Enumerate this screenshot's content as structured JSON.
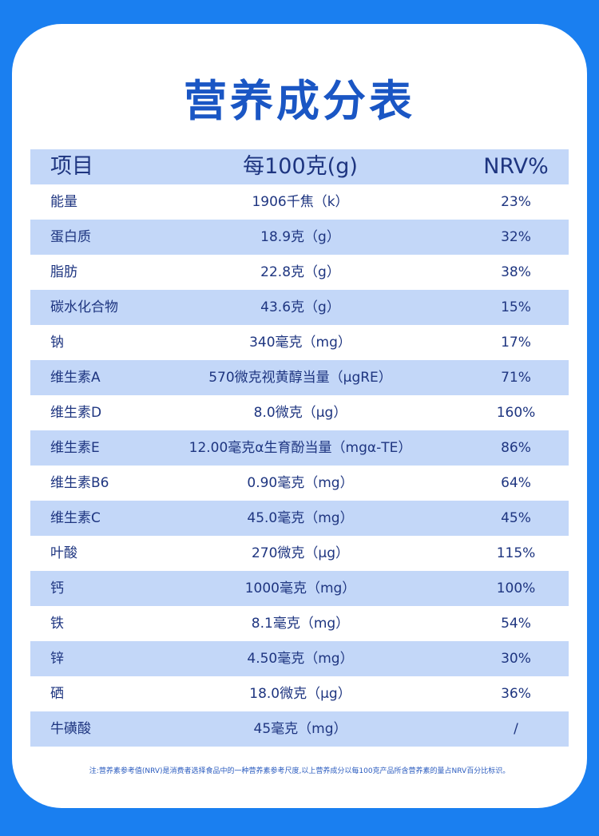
{
  "header": {
    "title": "营养成分表"
  },
  "table": {
    "columns": [
      "项目",
      "每100克(g)",
      "NRV%"
    ],
    "rows": [
      [
        "能量",
        "1906千焦（k）",
        "23%"
      ],
      [
        "蛋白质",
        "18.9克（g）",
        "32%"
      ],
      [
        "脂肪",
        "22.8克（g）",
        "38%"
      ],
      [
        "碳水化合物",
        "43.6克（g）",
        "15%"
      ],
      [
        "钠",
        "340毫克（mg）",
        "17%"
      ],
      [
        "维生素A",
        "570微克视黄醇当量（μgRE）",
        "71%"
      ],
      [
        "维生素D",
        "8.0微克（μg）",
        "160%"
      ],
      [
        "维生素E",
        "12.00毫克α生育酚当量（mgα-TE）",
        "86%"
      ],
      [
        "维生素B6",
        "0.90毫克（mg）",
        "64%"
      ],
      [
        "维生素C",
        "45.0毫克（mg）",
        "45%"
      ],
      [
        "叶酸",
        "270微克（μg）",
        "115%"
      ],
      [
        "钙",
        "1000毫克（mg）",
        "100%"
      ],
      [
        "铁",
        "8.1毫克（mg）",
        "54%"
      ],
      [
        "锌",
        "4.50毫克（mg）",
        "30%"
      ],
      [
        "硒",
        "18.0微克（μg）",
        "36%"
      ],
      [
        "牛磺酸",
        "45毫克（mg）",
        "/"
      ]
    ]
  },
  "note": "注:营养素参考值(NRV)是消费者选择食品中的一种营养素参考尺度,以上营养成分以每100克产品所含营养素的量占NRV百分比标识。"
}
